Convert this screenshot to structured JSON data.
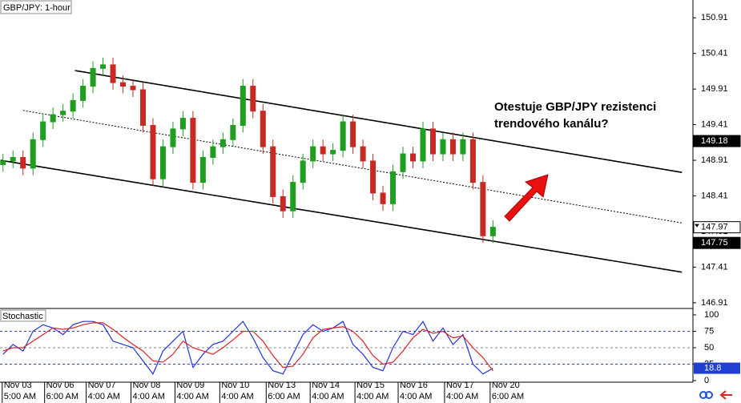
{
  "chart_data": {
    "type": "candlestick",
    "title": "GBP/JPY: 1-hour",
    "annotation": [
      "Otestuje GBP/JPY rezistenci",
      "trendového kanálu?"
    ],
    "xlim": [
      -0.3,
      69
    ],
    "ylim": [
      146.83,
      151.16
    ],
    "yticks": [
      150.91,
      150.41,
      149.91,
      149.41,
      148.91,
      148.41,
      147.91,
      147.41,
      146.91
    ],
    "up_color": "#1f9e1f",
    "down_color": "#c62a22",
    "open": [
      148.85,
      148.9,
      148.95,
      148.8,
      149.2,
      149.45,
      149.55,
      149.6,
      149.75,
      149.95,
      150.2,
      150.25,
      150.0,
      149.95,
      149.9,
      149.4,
      148.65,
      149.1,
      149.35,
      149.5,
      148.6,
      148.95,
      149.1,
      149.2,
      149.4,
      149.95,
      149.6,
      149.1,
      148.4,
      148.2,
      148.6,
      148.9,
      149.1,
      149.0,
      149.05,
      149.45,
      149.1,
      148.9,
      148.45,
      148.3,
      148.75,
      149.0,
      148.9,
      149.35,
      149.0,
      149.2,
      149.0,
      149.2,
      148.6,
      147.85
    ],
    "high": [
      149.0,
      149.05,
      149.05,
      149.3,
      149.55,
      149.65,
      149.7,
      149.85,
      150.05,
      150.3,
      150.35,
      150.35,
      150.1,
      150.05,
      150.0,
      149.5,
      149.2,
      149.45,
      149.6,
      149.6,
      149.05,
      149.2,
      149.3,
      149.5,
      150.05,
      150.05,
      149.7,
      149.2,
      148.5,
      148.7,
      149.0,
      149.2,
      149.2,
      149.15,
      149.55,
      149.55,
      149.2,
      149.0,
      148.55,
      148.85,
      149.1,
      149.1,
      149.45,
      149.45,
      149.3,
      149.3,
      149.3,
      149.3,
      148.7,
      148.07
    ],
    "low": [
      148.75,
      148.8,
      148.7,
      148.7,
      149.1,
      149.35,
      149.45,
      149.5,
      149.65,
      149.85,
      150.1,
      149.9,
      149.85,
      149.8,
      149.3,
      148.55,
      148.55,
      149.0,
      149.25,
      148.5,
      148.5,
      148.85,
      149.0,
      149.1,
      149.3,
      149.5,
      149.0,
      148.3,
      148.1,
      148.1,
      148.5,
      148.8,
      148.9,
      148.9,
      148.95,
      149.0,
      148.8,
      148.35,
      148.2,
      148.2,
      148.65,
      148.8,
      148.8,
      148.9,
      148.9,
      148.9,
      148.9,
      148.5,
      147.75,
      147.75
    ],
    "close": [
      148.9,
      148.95,
      148.8,
      149.2,
      149.45,
      149.55,
      149.6,
      149.75,
      149.95,
      150.2,
      150.25,
      150.0,
      149.95,
      149.9,
      149.4,
      148.65,
      149.1,
      149.35,
      149.5,
      148.6,
      148.95,
      149.1,
      149.2,
      149.4,
      149.95,
      149.6,
      149.1,
      148.4,
      148.2,
      148.6,
      148.9,
      149.1,
      149.0,
      149.05,
      149.45,
      149.1,
      148.9,
      148.45,
      148.3,
      148.75,
      149.0,
      148.9,
      149.35,
      149.0,
      149.2,
      149.0,
      149.2,
      148.6,
      147.85,
      147.97
    ],
    "channel": [
      {
        "style": "solid",
        "x": [
          7.2,
          67.9
        ],
        "y": [
          150.17,
          148.74
        ]
      },
      {
        "style": "dotted",
        "x": [
          2,
          67.9
        ],
        "y": [
          149.61,
          148.03
        ]
      },
      {
        "style": "solid",
        "x": [
          -0.24,
          67.9
        ],
        "y": [
          148.91,
          147.34
        ]
      }
    ],
    "price_labels": [
      {
        "value": 149.18,
        "style": "dark"
      },
      {
        "value": 147.97,
        "style": "light"
      },
      {
        "value": 147.75,
        "style": "dark"
      }
    ],
    "x_labels": [
      {
        "index": -0.08,
        "date": "Nov 03",
        "time": "5:00 AM"
      },
      {
        "index": 4.16,
        "date": "Nov 06",
        "time": "6:00 AM"
      },
      {
        "index": 8.32,
        "date": "Nov 07",
        "time": "4:00 AM"
      },
      {
        "index": 12.8,
        "date": "Nov 08",
        "time": "4:00 AM"
      },
      {
        "index": 17.2,
        "date": "Nov 09",
        "time": "4:00 AM"
      },
      {
        "index": 21.68,
        "date": "Nov 10",
        "time": "4:00 AM"
      },
      {
        "index": 26.32,
        "date": "Nov 13",
        "time": "6:00 AM"
      },
      {
        "index": 30.72,
        "date": "Nov 14",
        "time": "4:00 AM"
      },
      {
        "index": 35.2,
        "date": "Nov 15",
        "time": "4:00 AM"
      },
      {
        "index": 39.52,
        "date": "Nov 16",
        "time": "4:00 AM"
      },
      {
        "index": 44.16,
        "date": "Nov 17",
        "time": "4:00 AM"
      },
      {
        "index": 48.72,
        "date": "Nov 20",
        "time": "6:00 AM"
      }
    ],
    "stochastic": {
      "title": "Stochastic",
      "ylim": [
        0,
        100
      ],
      "yticks": [
        100,
        75,
        50,
        25,
        0
      ],
      "levels": [
        75,
        50,
        25
      ],
      "current": 18.8,
      "series": [
        {
          "color": "#2233dd",
          "values": [
            40,
            55,
            45,
            75,
            85,
            80,
            70,
            85,
            90,
            90,
            85,
            60,
            55,
            50,
            30,
            10,
            45,
            60,
            75,
            20,
            40,
            55,
            60,
            75,
            90,
            65,
            35,
            15,
            10,
            40,
            70,
            85,
            75,
            80,
            90,
            55,
            40,
            20,
            15,
            50,
            75,
            70,
            90,
            60,
            80,
            55,
            70,
            25,
            10,
            18.8
          ]
        },
        {
          "color": "#e02222",
          "values": [
            45,
            50,
            50,
            60,
            70,
            80,
            78,
            80,
            85,
            88,
            88,
            78,
            66,
            55,
            45,
            30,
            28,
            40,
            60,
            50,
            45,
            40,
            50,
            62,
            75,
            75,
            60,
            38,
            20,
            22,
            40,
            65,
            78,
            80,
            82,
            75,
            60,
            38,
            25,
            28,
            45,
            65,
            78,
            72,
            75,
            65,
            68,
            50,
            35,
            15
          ]
        }
      ]
    }
  }
}
